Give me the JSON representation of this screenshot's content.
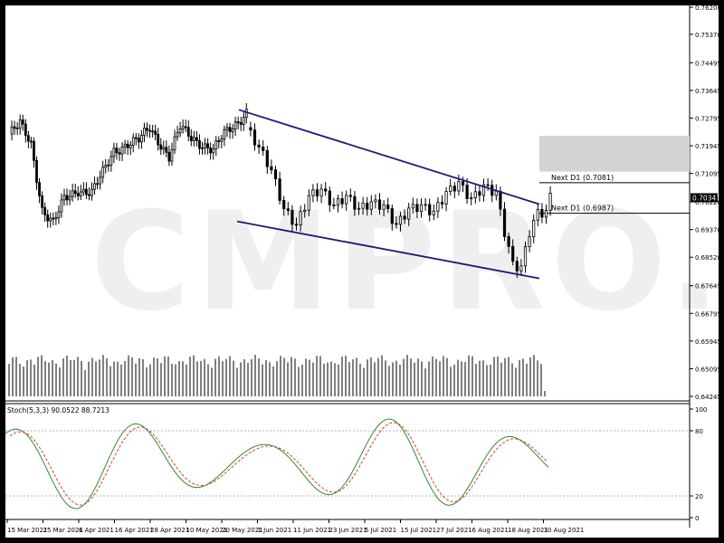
{
  "watermark": "CMPRO.IR",
  "colors": {
    "bull": "#000000",
    "bear": "#000000",
    "stoch_main": "#2e8b2e",
    "stoch_signal": "#d23c2c",
    "channel": "#1e1e78",
    "zone": "#d3d3d3",
    "grid": "#9a9a9a",
    "text": "#000000"
  },
  "chart_data": [
    {
      "type": "candlestick",
      "symbol_timeframe": "D1",
      "y_ticks": [
        "0.76200",
        "0.75370",
        "0.74495",
        "0.73645",
        "0.72795",
        "0.71945",
        "0.71095",
        "0.70220",
        "0.69370",
        "0.68520",
        "0.67645",
        "0.66795",
        "0.65945",
        "0.65095",
        "0.64245"
      ],
      "current_price": "0.70347",
      "ylim": [
        0.64245,
        0.762
      ],
      "levels": [
        {
          "label": "Next D1 (0.7081)",
          "value": 0.7081
        },
        {
          "label": "Next D1 (0.6987)",
          "value": 0.6987
        }
      ],
      "resistance_zone": {
        "from": 0.7115,
        "to": 0.7225
      },
      "channel_upper": [
        {
          "x": "21 May 2021",
          "y": 0.7305
        },
        {
          "x": "30 Aug 2021",
          "y": 0.7015
        }
      ],
      "channel_lower": [
        {
          "x": "21 May 2021",
          "y": 0.6962
        },
        {
          "x": "30 Aug 2021",
          "y": 0.6787
        }
      ],
      "volume_max": 50
    },
    {
      "type": "line",
      "title": "Stoch(5,3,3) 90.0522 88.7213",
      "y_ticks": [
        "100",
        "80",
        "20",
        "0"
      ],
      "ylim": [
        0,
        100
      ],
      "series": [
        {
          "name": "Main",
          "values": []
        },
        {
          "name": "Signal",
          "values": []
        }
      ]
    }
  ],
  "x_ticks": [
    "15 Mar 2021",
    "25 Mar 2021",
    "6 Apr 2021",
    "16 Apr 2021",
    "28 Apr 2021",
    "10 May 2021",
    "20 May 2021",
    "1 Jun 2021",
    "11 Jun 2021",
    "23 Jun 2021",
    "5 Jul 2021",
    "15 Jul 2021",
    "27 Jul 2021",
    "6 Aug 2021",
    "18 Aug 2021",
    "30 Aug 2021"
  ]
}
